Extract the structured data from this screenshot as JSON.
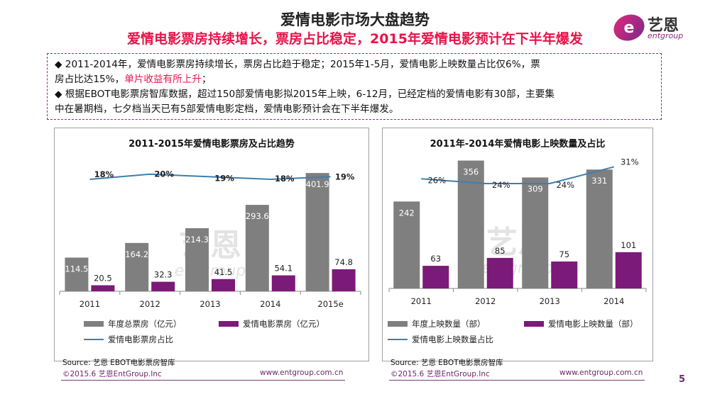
{
  "header": {
    "title": "爱情电影市场大盘趋势",
    "subtitle": "爱情电影票房持续增长，票房占比稳定，2015年爱情电影预计在下半年爆发"
  },
  "logo": {
    "name": "艺恩",
    "sub": "entgroup"
  },
  "summary": {
    "bullet_glyph": "◆",
    "b1_part1": "2011-2014年，爱情电影票房持续增长，票房占比趋于稳定；2015年1-5月，爱情电影上映数量占比仅6%，票",
    "b1_part2": "房占比达15%，",
    "b1_highlight": "单片收益有所上升",
    "b1_part3": "；",
    "b2_part1": "根据EBOT电影票房智库数据，超过150部爱情电影拟2015年上映，6-12月，已经定档的爱情电影有30部，主要集",
    "b2_part2": "中在暑期档，七夕档当天已有5部爱情电影定档，爱情电影预计会在下半年爆发。"
  },
  "watermark": {
    "cn": "艺恩",
    "en": "entgroup"
  },
  "chart_data": [
    {
      "type": "bar",
      "title": "2011-2015年爱情电影票房及占比趋势",
      "categories": [
        "2011",
        "2012",
        "2013",
        "2014",
        "2015e"
      ],
      "series": [
        {
          "name": "年度总票房（亿元）",
          "kind": "bar",
          "color": "#7f7f7f",
          "values": [
            114.5,
            164.2,
            214.3,
            293.6,
            401.9
          ]
        },
        {
          "name": "爱情电影票房（亿元）",
          "kind": "bar",
          "color": "#7b1a78",
          "values": [
            20.5,
            32.3,
            41.5,
            54.1,
            74.8
          ]
        },
        {
          "name": "爱情电影票房占比",
          "kind": "line",
          "color": "#3f7fae",
          "values": [
            18,
            20,
            19,
            18,
            19
          ],
          "labels": [
            "18%",
            "20%",
            "19%",
            "18%",
            "19%"
          ]
        }
      ],
      "ylim": [
        0,
        460
      ],
      "line_ylim": [
        -25,
        27
      ],
      "source": "Source: 艺恩 EBOT电影票房智库",
      "footer_left": "©2015.6 艺恩EntGroup.Inc",
      "footer_right": "www.entgroup.com.cn"
    },
    {
      "type": "bar",
      "title": "2011年-2014年爱情电影上映数量及占比",
      "categories": [
        "2011",
        "2012",
        "2013",
        "2014"
      ],
      "series": [
        {
          "name": "年度上映数量（部）",
          "kind": "bar",
          "color": "#7f7f7f",
          "values": [
            242,
            356,
            309,
            331
          ]
        },
        {
          "name": "爱情电影上映数量（部）",
          "kind": "bar",
          "color": "#7b1a78",
          "values": [
            63,
            85,
            75,
            101
          ]
        },
        {
          "name": "爱情电影上映数量占比",
          "kind": "line",
          "color": "#3f7fae",
          "values": [
            26,
            24,
            24,
            31
          ],
          "labels": [
            "26%",
            "24%",
            "24%",
            "31%"
          ]
        }
      ],
      "ylim": [
        0,
        365
      ],
      "line_ylim": [
        -20,
        35
      ],
      "source": "Source: 艺恩 EBOT电影票房智库",
      "footer_left": "©2015.6 艺恩EntGroup.Inc",
      "footer_right": "www.entgroup.com.cn"
    }
  ],
  "page_number": "5"
}
